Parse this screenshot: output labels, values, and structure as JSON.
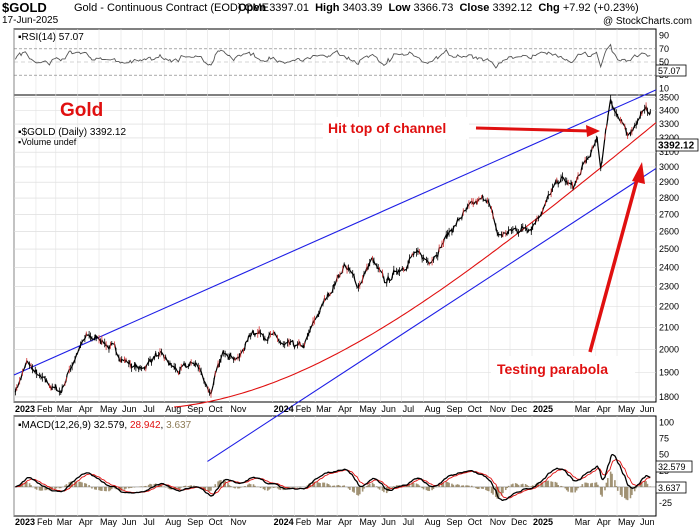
{
  "header": {
    "symbol": "$GOLD",
    "description": "Gold - Continuous Contract (EOD)",
    "exchange": "CME",
    "date": "17-Jun-2025",
    "open_label": "Open",
    "open": "3397.01",
    "high_label": "High",
    "high": "3403.39",
    "low_label": "Low",
    "low": "3366.73",
    "close_label": "Close",
    "close": "3392.12",
    "chg_label": "Chg",
    "chg": "+7.92 (+0.23%)",
    "brand": "@ StockCharts.com"
  },
  "rsi_panel": {
    "label": "RSI(14) 57.07",
    "current": "57.07",
    "yticks": [
      "90",
      "70",
      "50",
      "30",
      "10"
    ]
  },
  "price_panel": {
    "big_label": "Gold",
    "series_label": "$GOLD (Daily) 3392.12",
    "volume_label": "Volume undef",
    "last_price": "3392.12",
    "annotation_top": "Hit top of channel",
    "annotation_bottom": "Testing parabola",
    "yticks": [
      "3500",
      "3400",
      "3300",
      "3200",
      "3100",
      "3000",
      "2900",
      "2800",
      "2700",
      "2600",
      "2500",
      "2400",
      "2300",
      "2200",
      "2100",
      "2000",
      "1900",
      "1800"
    ]
  },
  "macd_panel": {
    "label_prefix": "MACD(12,26,9)",
    "macd": "32.579",
    "signal": "28.942",
    "hist": "3.637",
    "yticks": [
      "100",
      "75",
      "50",
      "25",
      "0",
      "-25"
    ]
  },
  "x_axis": [
    "2023",
    "Feb",
    "Mar",
    "Apr",
    "May",
    "Jun",
    "Jul",
    "Aug",
    "Sep",
    "Oct",
    "Nov",
    "2024",
    "Feb",
    "Mar",
    "Apr",
    "May",
    "Jun",
    "Jul",
    "Aug",
    "Sep",
    "Oct",
    "Nov",
    "Dec",
    "2025",
    "Mar",
    "Apr",
    "May",
    "Jun"
  ],
  "colors": {
    "price": "#000000",
    "channel": "#1e1ee6",
    "parabola": "#e01010",
    "annotation": "#e01010",
    "macd": "#000000",
    "signal": "#e01010",
    "hist": "#8c7a55"
  },
  "chart_data": {
    "type": "line",
    "series": [
      {
        "name": "$GOLD (Daily)",
        "x": [
          "2023-01-03",
          "2023-01-20",
          "2023-02-10",
          "2023-03-08",
          "2023-03-31",
          "2023-04-13",
          "2023-05-04",
          "2023-05-31",
          "2023-06-29",
          "2023-07-20",
          "2023-08-21",
          "2023-09-15",
          "2023-10-05",
          "2023-10-27",
          "2023-11-15",
          "2023-12-04",
          "2023-12-29",
          "2024-01-18",
          "2024-02-14",
          "2024-03-08",
          "2024-04-12",
          "2024-04-30",
          "2024-05-20",
          "2024-06-07",
          "2024-07-17",
          "2024-08-07",
          "2024-09-26",
          "2024-10-30",
          "2024-11-14",
          "2024-12-31",
          "2025-02-11",
          "2025-02-28",
          "2025-04-03",
          "2025-04-08",
          "2025-04-22",
          "2025-05-15",
          "2025-06-05",
          "2025-06-17"
        ],
        "values": [
          1830,
          1940,
          1860,
          1820,
          1990,
          2050,
          2050,
          1970,
          1910,
          1980,
          1900,
          1940,
          1820,
          2000,
          1965,
          2090,
          2070,
          2005,
          2005,
          2180,
          2420,
          2300,
          2440,
          2310,
          2470,
          2430,
          2700,
          2800,
          2570,
          2640,
          2920,
          2860,
          3170,
          2990,
          3500,
          3200,
          3400,
          3392
        ]
      }
    ],
    "annotations": [
      "Hit top of channel",
      "Testing parabola"
    ],
    "ylim": [
      1780,
      3520
    ],
    "rsi": {
      "current": 57.07,
      "range": [
        10,
        90
      ]
    },
    "macd": {
      "macd": 32.579,
      "signal": 28.942,
      "hist": 3.637
    }
  }
}
